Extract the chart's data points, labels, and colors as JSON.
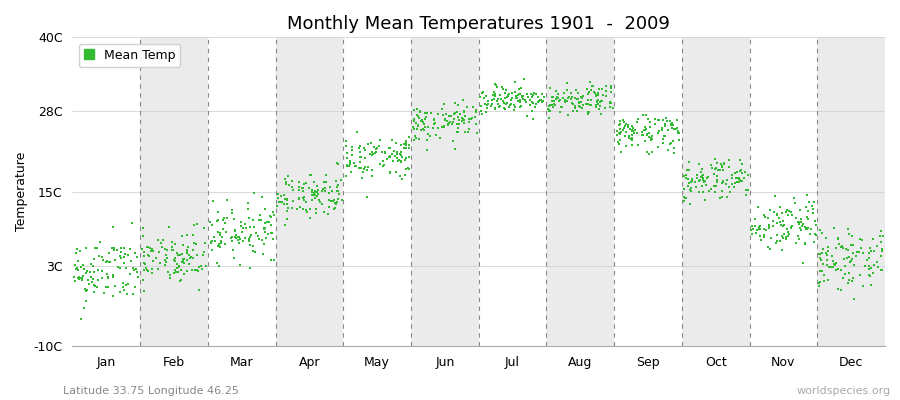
{
  "title": "Monthly Mean Temperatures 1901  -  2009",
  "ylabel": "Temperature",
  "subtitle": "Latitude 33.75 Longitude 46.25",
  "watermark": "worldspecies.org",
  "months": [
    "Jan",
    "Feb",
    "Mar",
    "Apr",
    "May",
    "Jun",
    "Jul",
    "Aug",
    "Sep",
    "Oct",
    "Nov",
    "Dec"
  ],
  "month_means": [
    2.0,
    4.0,
    8.5,
    14.5,
    20.5,
    26.0,
    30.0,
    29.5,
    24.5,
    17.0,
    9.5,
    4.0
  ],
  "month_stds": [
    2.8,
    2.5,
    2.2,
    1.8,
    1.8,
    1.5,
    1.2,
    1.2,
    1.6,
    1.8,
    2.2,
    2.5
  ],
  "n_years": 109,
  "dot_color": "#33bb33",
  "dot_size": 3,
  "ylim": [
    -10,
    40
  ],
  "yticks": [
    -10,
    3,
    15,
    28,
    40
  ],
  "ytick_labels": [
    "-10C",
    "3C",
    "15C",
    "28C",
    "40C"
  ],
  "bg_colors": [
    "#ffffff",
    "#ebebeb"
  ],
  "legend_label": "Mean Temp",
  "title_fontsize": 13,
  "axis_fontsize": 9,
  "tick_fontsize": 9
}
